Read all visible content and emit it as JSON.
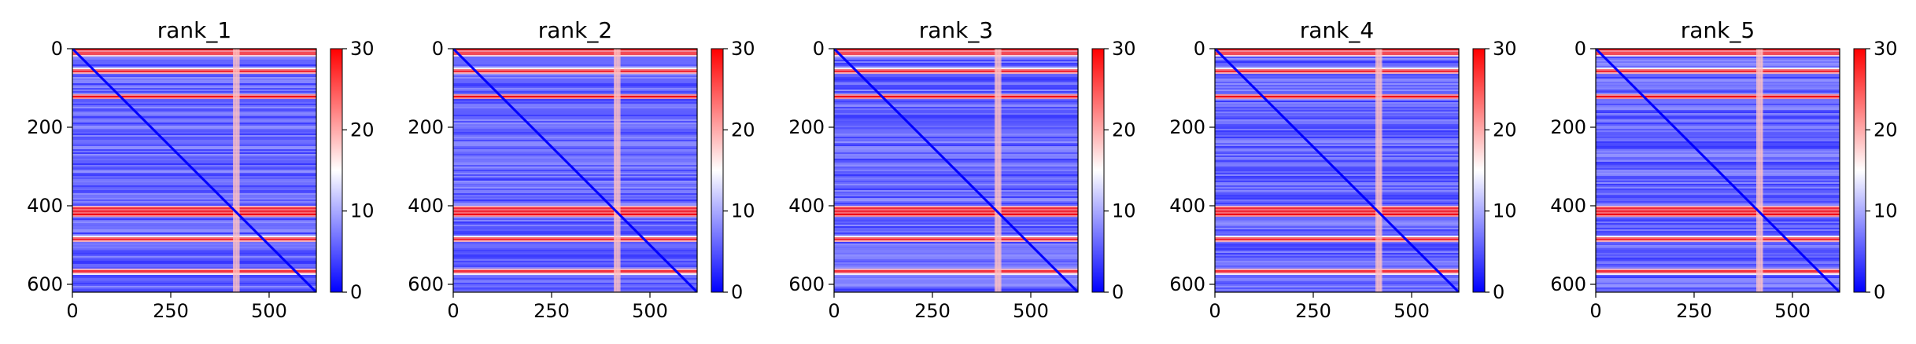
{
  "chart_data": [
    {
      "type": "heatmap",
      "title": "rank_1",
      "xlabel": "",
      "ylabel": "",
      "x_ticks": [
        "0",
        "250",
        "500"
      ],
      "y_ticks": [
        "0",
        "200",
        "400",
        "600"
      ],
      "colorbar_ticks": [
        "0",
        "10",
        "20",
        "30"
      ],
      "xlim": [
        0,
        620
      ],
      "ylim": [
        620,
        0
      ],
      "vmin": 0,
      "vmax": 30,
      "colormap": "bwr",
      "n_residues": 620,
      "high_rows": [
        0,
        10,
        55,
        120,
        405,
        413,
        420,
        483,
        565
      ],
      "high_cols": [
        410,
        418
      ],
      "diagonal_value": 0
    },
    {
      "type": "heatmap",
      "title": "rank_2",
      "xlabel": "",
      "ylabel": "",
      "x_ticks": [
        "0",
        "250",
        "500"
      ],
      "y_ticks": [
        "0",
        "200",
        "400",
        "600"
      ],
      "colorbar_ticks": [
        "0",
        "10",
        "20",
        "30"
      ],
      "xlim": [
        0,
        620
      ],
      "ylim": [
        620,
        0
      ],
      "vmin": 0,
      "vmax": 30,
      "colormap": "bwr",
      "n_residues": 620,
      "high_rows": [
        0,
        10,
        55,
        120,
        405,
        413,
        420,
        483,
        565
      ],
      "high_cols": [
        410,
        418
      ],
      "diagonal_value": 0
    },
    {
      "type": "heatmap",
      "title": "rank_3",
      "xlabel": "",
      "ylabel": "",
      "x_ticks": [
        "0",
        "250",
        "500"
      ],
      "y_ticks": [
        "0",
        "200",
        "400",
        "600"
      ],
      "colorbar_ticks": [
        "0",
        "10",
        "20",
        "30"
      ],
      "xlim": [
        0,
        620
      ],
      "ylim": [
        620,
        0
      ],
      "vmin": 0,
      "vmax": 30,
      "colormap": "bwr",
      "n_residues": 620,
      "high_rows": [
        0,
        10,
        55,
        120,
        405,
        413,
        420,
        483,
        565
      ],
      "high_cols": [
        410,
        418
      ],
      "diagonal_value": 0
    },
    {
      "type": "heatmap",
      "title": "rank_4",
      "xlabel": "",
      "ylabel": "",
      "x_ticks": [
        "0",
        "250",
        "500"
      ],
      "y_ticks": [
        "0",
        "200",
        "400",
        "600"
      ],
      "colorbar_ticks": [
        "0",
        "10",
        "20",
        "30"
      ],
      "xlim": [
        0,
        620
      ],
      "ylim": [
        620,
        0
      ],
      "vmin": 0,
      "vmax": 30,
      "colormap": "bwr",
      "n_residues": 620,
      "high_rows": [
        0,
        10,
        55,
        120,
        405,
        413,
        420,
        483,
        565
      ],
      "high_cols": [
        410,
        418
      ],
      "diagonal_value": 0
    },
    {
      "type": "heatmap",
      "title": "rank_5",
      "xlabel": "",
      "ylabel": "",
      "x_ticks": [
        "0",
        "250",
        "500"
      ],
      "y_ticks": [
        "0",
        "200",
        "400",
        "600"
      ],
      "colorbar_ticks": [
        "0",
        "10",
        "20",
        "30"
      ],
      "xlim": [
        0,
        620
      ],
      "ylim": [
        620,
        0
      ],
      "vmin": 0,
      "vmax": 30,
      "colormap": "bwr",
      "n_residues": 620,
      "high_rows": [
        0,
        10,
        55,
        120,
        405,
        413,
        420,
        483,
        565
      ],
      "high_cols": [
        410,
        418
      ],
      "diagonal_value": 0
    }
  ]
}
